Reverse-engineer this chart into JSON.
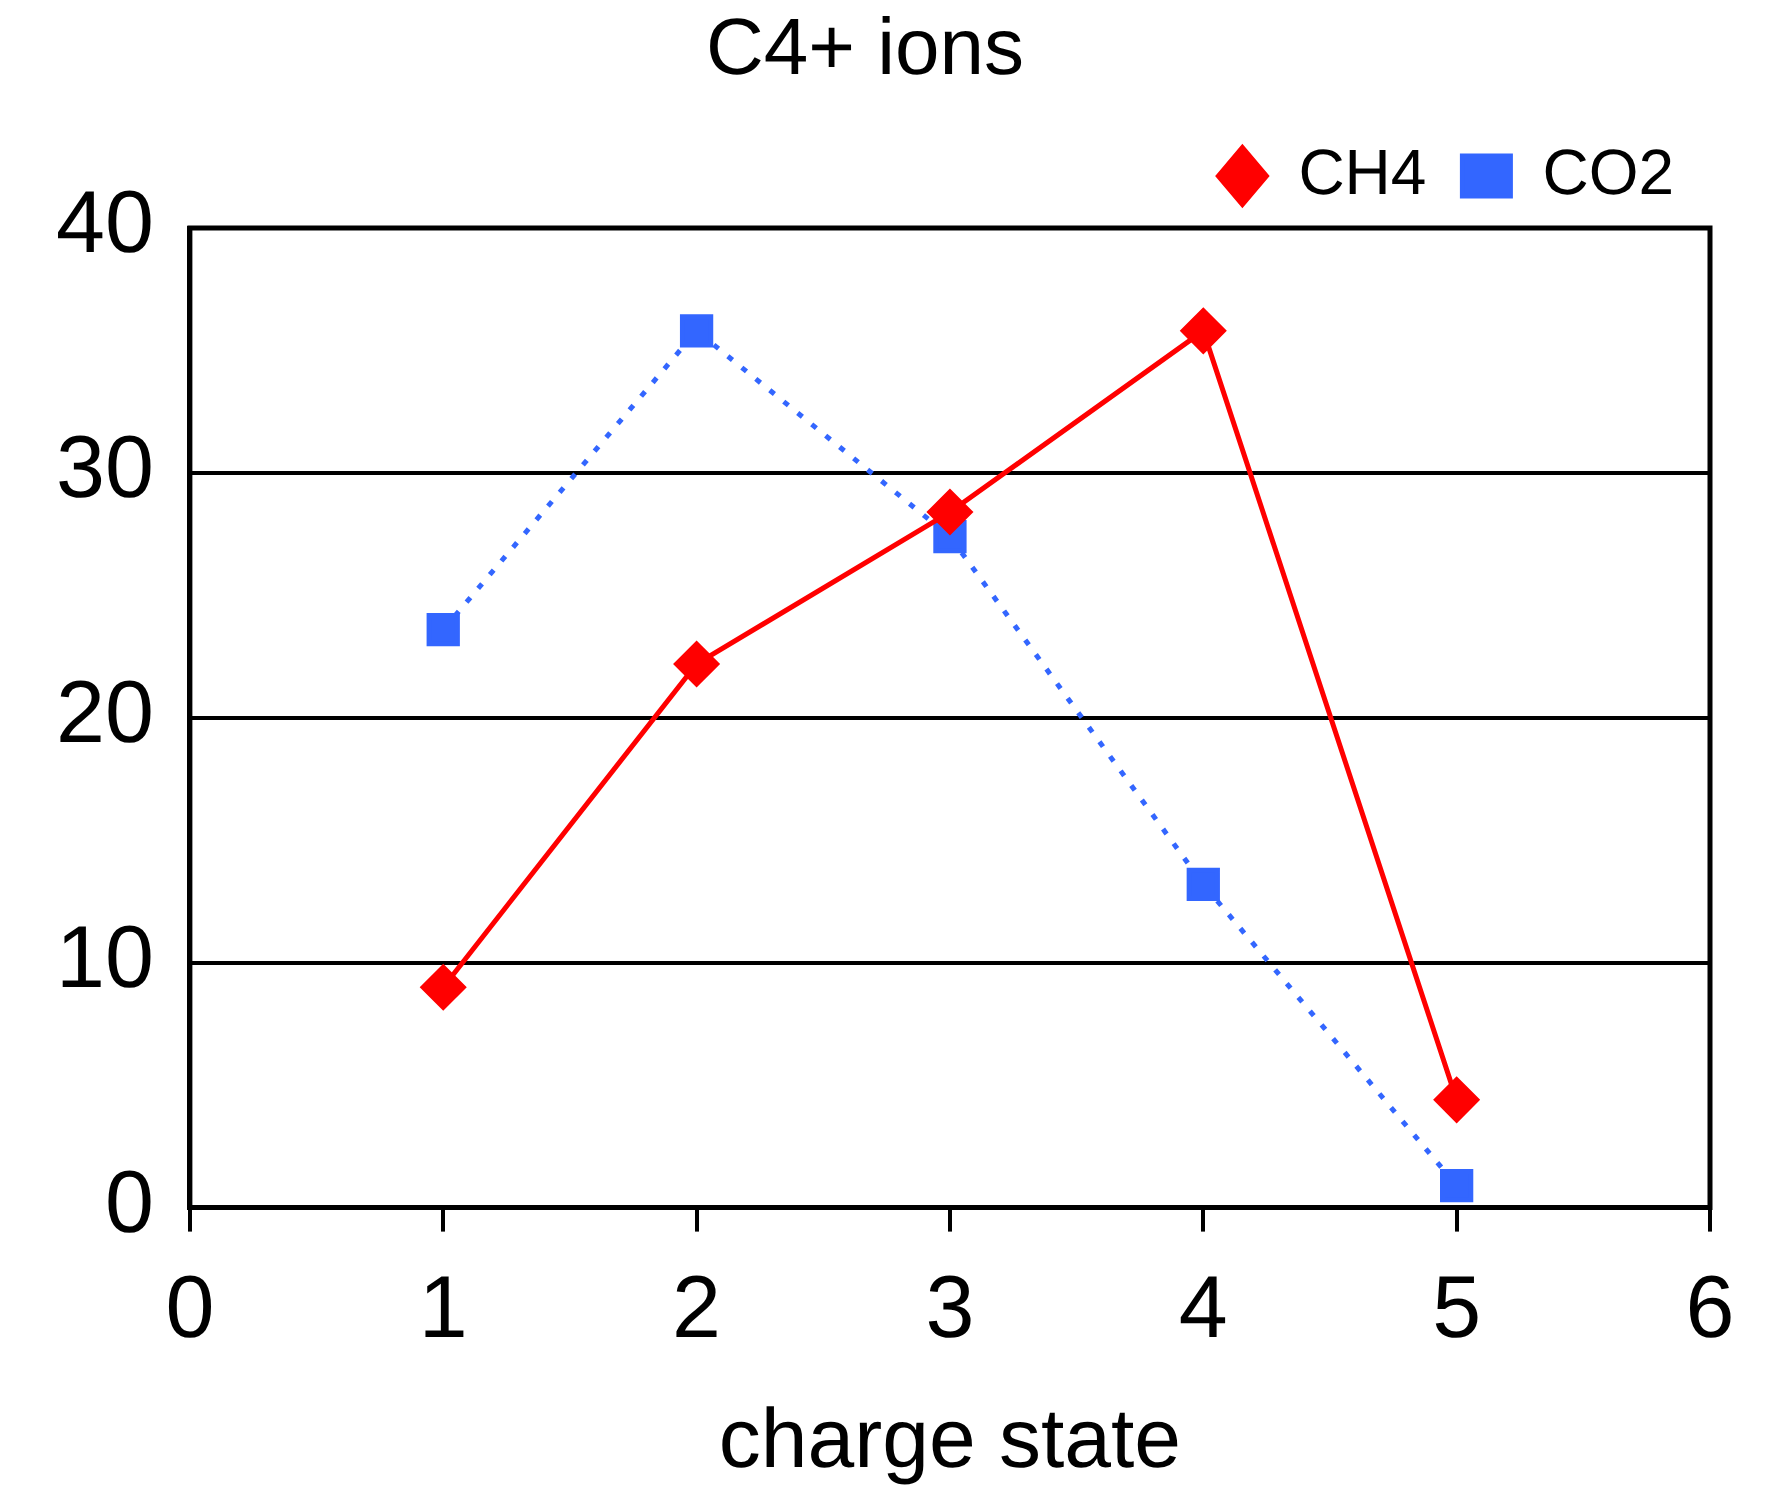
{
  "chart_data": {
    "type": "line",
    "title": "C4+ ions",
    "xlabel": "charge state",
    "x": [
      1,
      2,
      3,
      4,
      5
    ],
    "series": [
      {
        "name": "CH4",
        "color": "#ff0000",
        "values": [
          9.0,
          22.2,
          28.4,
          35.8,
          4.4
        ],
        "marker": "diamond",
        "line_style": "solid"
      },
      {
        "name": "CO2",
        "color": "#3366ff",
        "values": [
          23.6,
          35.8,
          27.4,
          13.2,
          0.9
        ],
        "marker": "square",
        "line_style": "dotted"
      }
    ],
    "xlim": [
      0,
      6
    ],
    "xticks": [
      0,
      1,
      2,
      3,
      4,
      5,
      6
    ],
    "ylim": [
      0,
      40
    ],
    "yticks": [
      0,
      10,
      20,
      30,
      40
    ],
    "grid": "y",
    "legend": "top right"
  }
}
